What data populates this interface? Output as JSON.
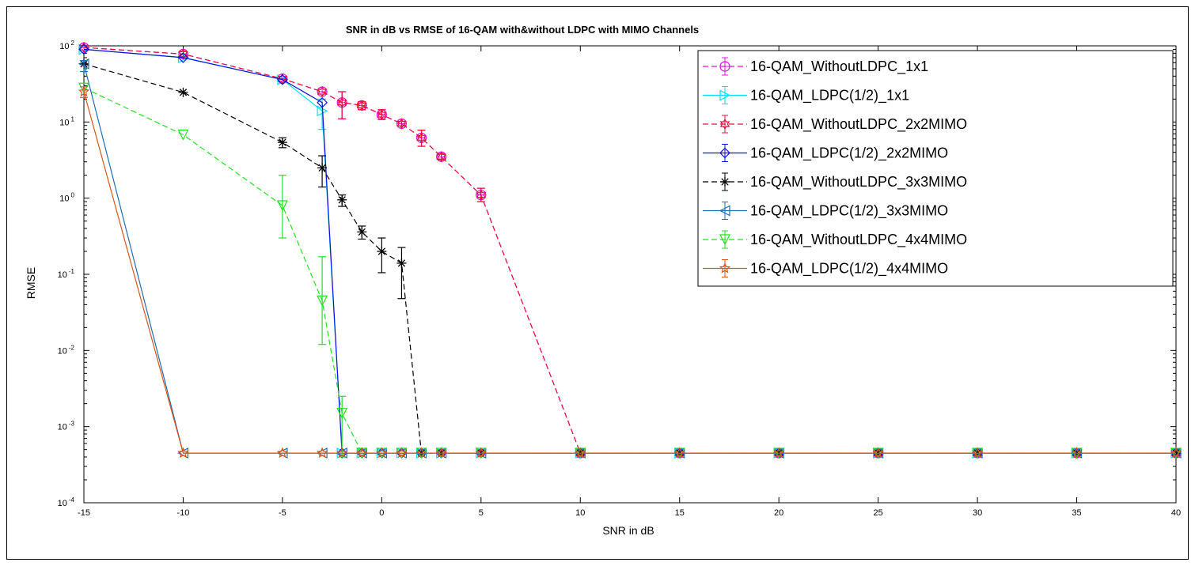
{
  "chart_data": {
    "type": "line",
    "title": "SNR in dB vs RMSE of  16-QAM with&without LDPC with MIMO Channels",
    "xlabel": "SNR in dB",
    "ylabel": "RMSE",
    "xlim": [
      -15,
      40
    ],
    "ylim": [
      0.0001,
      100
    ],
    "yscale": "log",
    "xticks": [
      -15,
      -10,
      -5,
      0,
      5,
      10,
      15,
      20,
      25,
      30,
      35,
      40
    ],
    "yticks": [
      {
        "base": "10",
        "exp": "2"
      },
      {
        "base": "10",
        "exp": "1"
      },
      {
        "base": "10",
        "exp": "0"
      },
      {
        "base": "10",
        "exp": "-1"
      },
      {
        "base": "10",
        "exp": "-2"
      },
      {
        "base": "10",
        "exp": "-3"
      },
      {
        "base": "10",
        "exp": "-4"
      }
    ],
    "grid": false,
    "legend_position": "top-right",
    "floor": 0.00045,
    "x": [
      -15,
      -10,
      -5,
      -3,
      -2,
      -1,
      0,
      1,
      2,
      3,
      5,
      10,
      15,
      20,
      25,
      30,
      35,
      40
    ],
    "series": [
      {
        "name": "16-QAM_WithoutLDPC_1x1",
        "color": "#e010e0",
        "dash": "dashed",
        "marker": "circle",
        "values": [
          95,
          78,
          37,
          25,
          18,
          16.5,
          12.5,
          9.5,
          6.2,
          3.5,
          1.1,
          0.00045,
          0.00045,
          0.00045,
          0.00045,
          0.00045,
          0.00045,
          0.00045
        ],
        "err_low": [
          null,
          null,
          null,
          null,
          11,
          14.5,
          10.8,
          8.9,
          4.8,
          3.2,
          0.9,
          null,
          null,
          null,
          null,
          null,
          null,
          null
        ],
        "err_high": [
          null,
          null,
          null,
          null,
          25,
          18.5,
          14.5,
          10.2,
          7.8,
          3.8,
          1.35,
          null,
          null,
          null,
          null,
          null,
          null,
          null
        ]
      },
      {
        "name": "16-QAM_LDPC(1/2)_1x1",
        "color": "#00e0f0",
        "dash": "solid",
        "marker": "triangle-right",
        "values": [
          90,
          70,
          36,
          14,
          0.00045,
          0.00045,
          0.00045,
          0.00045,
          0.00045,
          0.00045,
          0.00045,
          0.00045,
          0.00045,
          0.00045,
          0.00045,
          0.00045,
          0.00045,
          0.00045
        ],
        "err_low": [
          null,
          null,
          null,
          8,
          null,
          null,
          null,
          null,
          null,
          null,
          null,
          null,
          null,
          null,
          null,
          null,
          null,
          null
        ],
        "err_high": [
          null,
          null,
          null,
          20,
          null,
          null,
          null,
          null,
          null,
          null,
          null,
          null,
          null,
          null,
          null,
          null,
          null,
          null
        ]
      },
      {
        "name": "16-QAM_WithoutLDPC_2x2MIMO",
        "color": "#e8123c",
        "dash": "dashed",
        "marker": "hexagram",
        "values": [
          95,
          78,
          37,
          25,
          18,
          16.5,
          12.5,
          9.5,
          6.2,
          3.5,
          1.1,
          0.00045,
          0.00045,
          0.00045,
          0.00045,
          0.00045,
          0.00045,
          0.00045
        ],
        "err_low": [
          null,
          72,
          null,
          null,
          11,
          14.5,
          10.8,
          8.9,
          4.8,
          3.2,
          0.9,
          null,
          null,
          null,
          null,
          null,
          null,
          null
        ],
        "err_high": [
          null,
          85,
          null,
          null,
          25,
          18.5,
          14.5,
          10.2,
          7.8,
          3.8,
          1.35,
          null,
          null,
          null,
          null,
          null,
          null,
          null
        ]
      },
      {
        "name": "16-QAM_LDPC(1/2)_2x2MIMO",
        "color": "#1010e0",
        "dash": "solid",
        "marker": "diamond",
        "values": [
          90,
          70,
          36,
          18,
          0.00045,
          0.00045,
          0.00045,
          0.00045,
          0.00045,
          0.00045,
          0.00045,
          0.00045,
          0.00045,
          0.00045,
          0.00045,
          0.00045,
          0.00045,
          0.00045
        ],
        "err_low": [
          null,
          null,
          null,
          null,
          null,
          null,
          null,
          null,
          null,
          null,
          null,
          null,
          null,
          null,
          null,
          null,
          null,
          null
        ],
        "err_high": [
          null,
          null,
          null,
          null,
          null,
          null,
          null,
          null,
          null,
          null,
          null,
          null,
          null,
          null,
          null,
          null,
          null,
          null
        ]
      },
      {
        "name": "16-QAM_WithoutLDPC_3x3MIMO",
        "color": "#000000",
        "dash": "dashed",
        "marker": "asterisk",
        "values": [
          58,
          24.5,
          5.4,
          2.5,
          0.95,
          0.36,
          0.2,
          0.14,
          0.00045,
          0.00045,
          0.00045,
          0.00045,
          0.00045,
          0.00045,
          0.00045,
          0.00045,
          0.00045,
          0.00045
        ],
        "err_low": [
          null,
          null,
          4.6,
          1.4,
          0.78,
          0.29,
          0.105,
          0.048,
          null,
          null,
          null,
          null,
          null,
          null,
          null,
          null,
          null,
          null
        ],
        "err_high": [
          null,
          null,
          6.2,
          3.6,
          1.1,
          0.43,
          0.3,
          0.225,
          null,
          null,
          null,
          null,
          null,
          null,
          null,
          null,
          null,
          null
        ]
      },
      {
        "name": "16-QAM_LDPC(1/2)_3x3MIMO",
        "color": "#1f6fb0",
        "dash": "solid",
        "marker": "triangle-left",
        "values": [
          58,
          0.00045,
          0.00045,
          0.00045,
          0.00045,
          0.00045,
          0.00045,
          0.00045,
          0.00045,
          0.00045,
          0.00045,
          0.00045,
          0.00045,
          0.00045,
          0.00045,
          0.00045,
          0.00045,
          0.00045
        ],
        "err_low": [
          46,
          null,
          null,
          null,
          null,
          null,
          null,
          null,
          null,
          null,
          null,
          null,
          null,
          null,
          null,
          null,
          null,
          null
        ],
        "err_high": [
          64,
          null,
          null,
          null,
          null,
          null,
          null,
          null,
          null,
          null,
          null,
          null,
          null,
          null,
          null,
          null,
          null,
          null
        ]
      },
      {
        "name": "16-QAM_WithoutLDPC_4x4MIMO",
        "color": "#22e022",
        "dash": "dashed",
        "marker": "triangle-down",
        "values": [
          28,
          6.8,
          0.8,
          0.045,
          0.0015,
          0.00045,
          0.00045,
          0.00045,
          0.00045,
          0.00045,
          0.00045,
          0.00045,
          0.00045,
          0.00045,
          0.00045,
          0.00045,
          0.00045,
          0.00045
        ],
        "err_low": [
          null,
          null,
          0.3,
          0.012,
          0.0004,
          null,
          null,
          null,
          null,
          null,
          null,
          null,
          null,
          null,
          null,
          null,
          null,
          null
        ],
        "err_high": [
          null,
          null,
          2.0,
          0.17,
          0.0025,
          null,
          null,
          null,
          null,
          null,
          null,
          null,
          null,
          null,
          null,
          null,
          null,
          null
        ]
      },
      {
        "name": "16-QAM_LDPC(1/2)_4x4MIMO",
        "color": "#d9541a",
        "dash": "solid",
        "marker": "star",
        "values": [
          25,
          0.00045,
          0.00045,
          0.00045,
          0.00045,
          0.00045,
          0.00045,
          0.00045,
          0.00045,
          0.00045,
          0.00045,
          0.00045,
          0.00045,
          0.00045,
          0.00045,
          0.00045,
          0.00045,
          0.00045
        ],
        "err_low": [
          21,
          null,
          null,
          null,
          null,
          null,
          null,
          null,
          null,
          null,
          null,
          null,
          null,
          null,
          null,
          null,
          null,
          null
        ],
        "err_high": [
          29,
          null,
          null,
          null,
          null,
          null,
          null,
          null,
          null,
          null,
          null,
          null,
          null,
          null,
          null,
          null,
          null,
          null
        ]
      }
    ]
  }
}
